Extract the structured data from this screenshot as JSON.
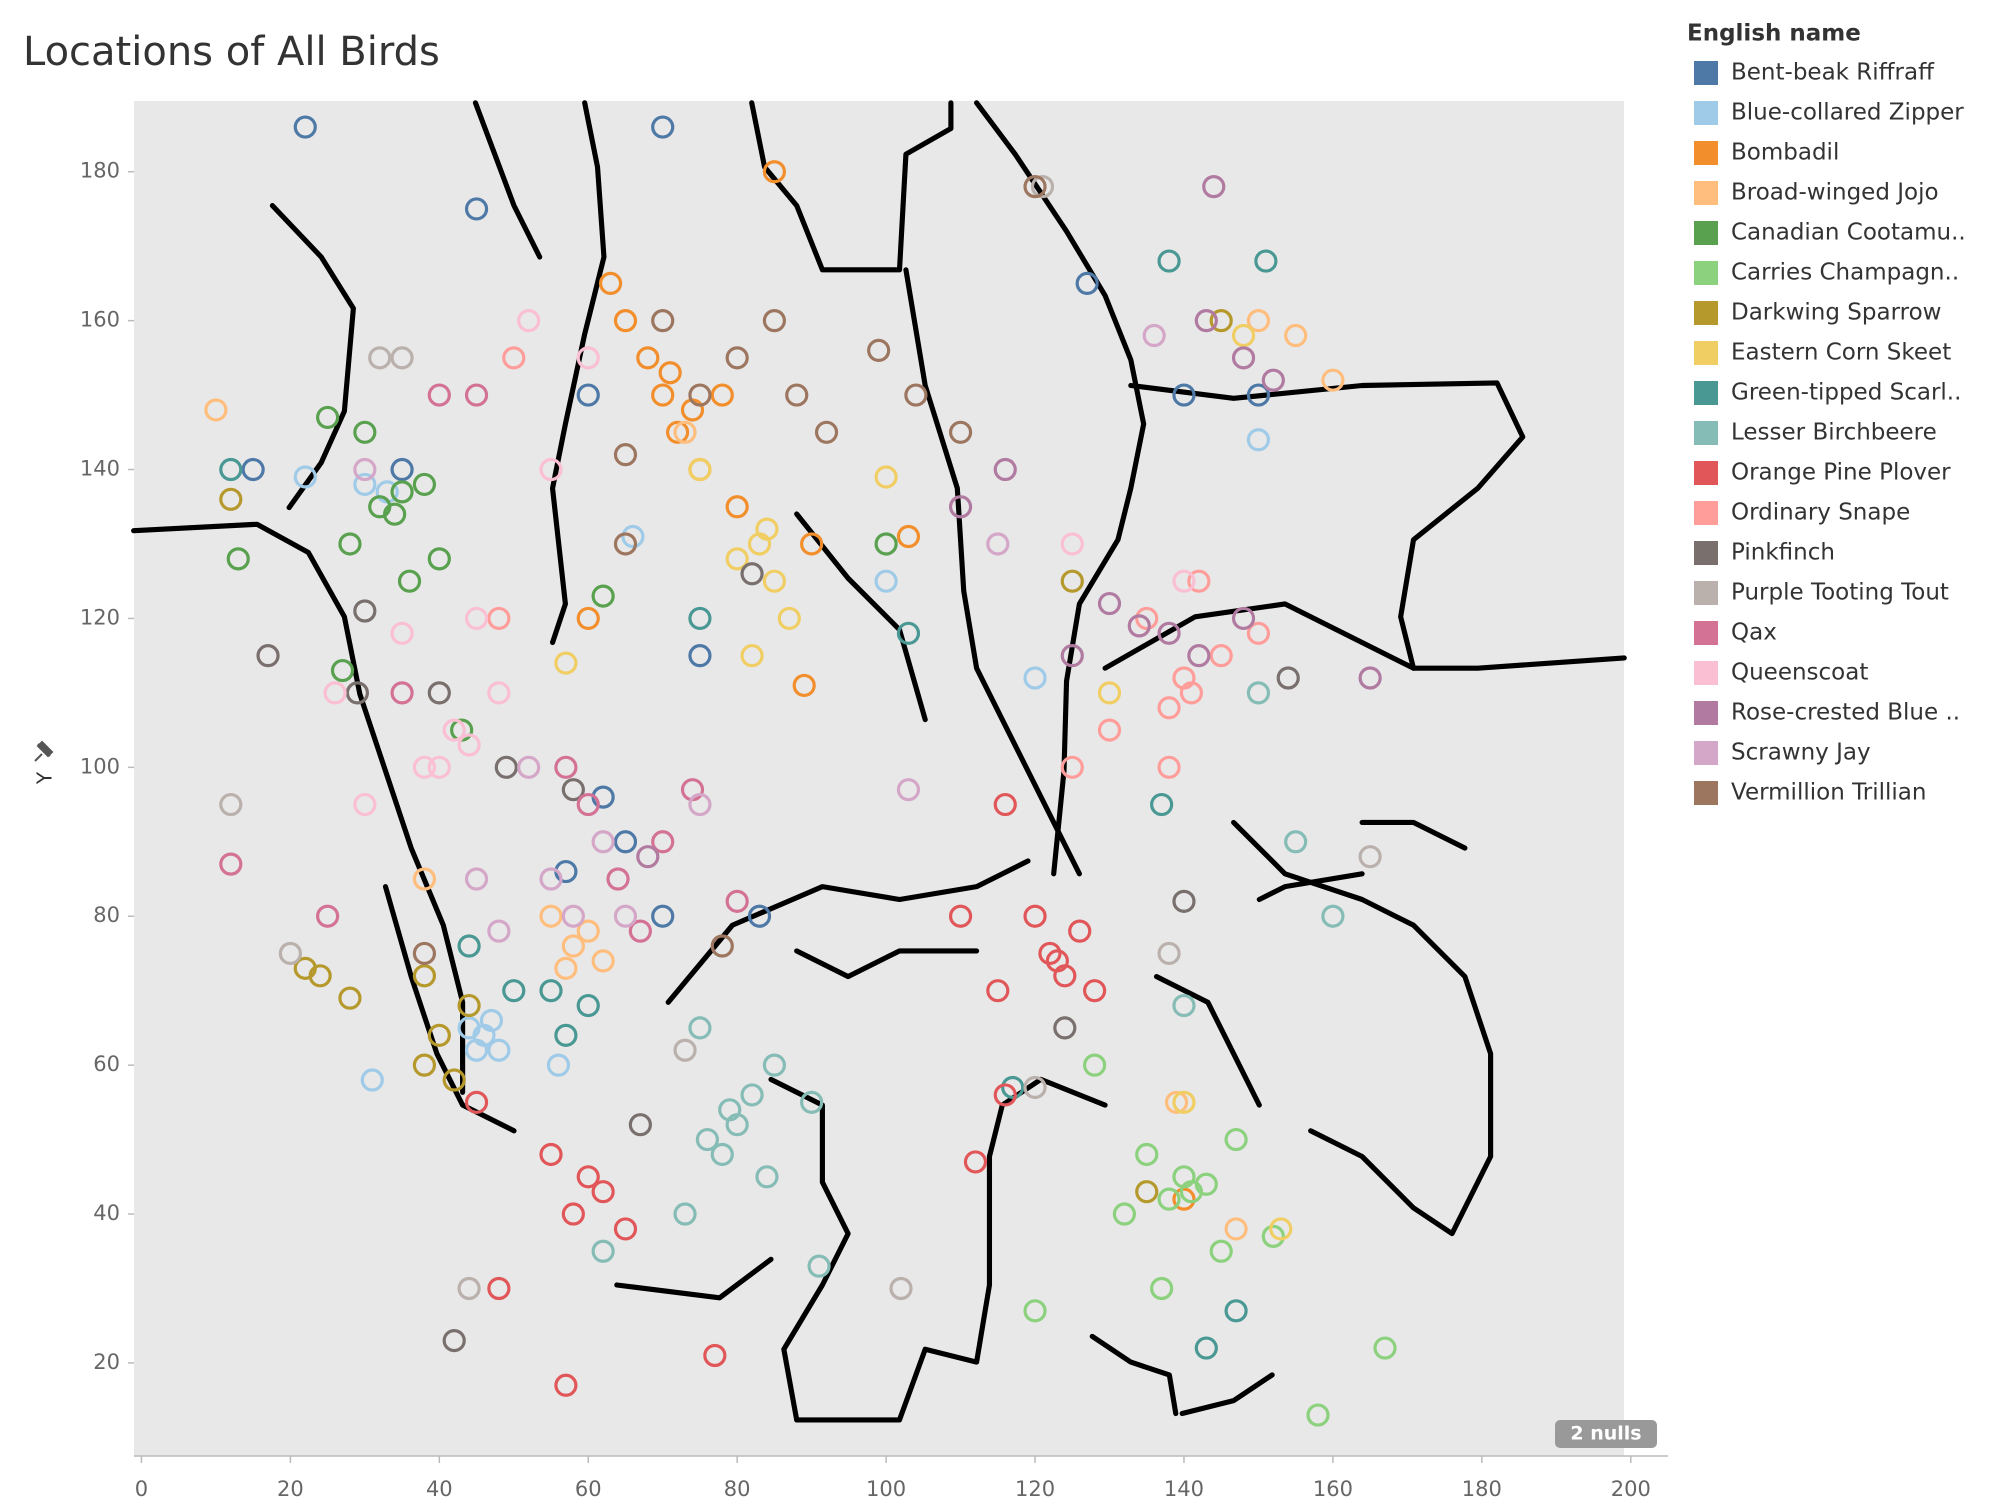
{
  "chart_data": {
    "type": "scatter",
    "title": "Locations of All Birds",
    "y_label": "Y",
    "legend_title": "English name",
    "nulls_indicator": "2 nulls",
    "xlim": [
      -1,
      205
    ],
    "ylim": [
      7.5,
      189.5
    ],
    "xticks": [
      0,
      20,
      40,
      60,
      80,
      100,
      120,
      140,
      160,
      180,
      200
    ],
    "yticks": [
      20,
      40,
      60,
      80,
      100,
      120,
      140,
      160,
      180
    ],
    "series": [
      {
        "name": "Bent-beak Riffraff",
        "color": "#4e79a7",
        "x": [
          65,
          70,
          35,
          60,
          22,
          70,
          15,
          75,
          83,
          45,
          127,
          140,
          150,
          57,
          62
        ],
        "y": [
          90,
          80,
          140,
          150,
          186,
          186,
          140,
          115,
          80,
          175,
          165,
          150,
          150,
          86,
          96
        ]
      },
      {
        "name": "Blue-collared Zipper",
        "color": "#a0cbe8",
        "x": [
          46,
          44,
          48,
          30,
          33,
          56,
          22,
          66,
          100,
          150,
          120,
          31,
          45,
          47
        ],
        "y": [
          64,
          65,
          62,
          138,
          137,
          60,
          139,
          131,
          125,
          144,
          112,
          58,
          62,
          66
        ]
      },
      {
        "name": "Bombadil",
        "color": "#f28e2b",
        "x": [
          70,
          72,
          68,
          75,
          65,
          80,
          90,
          63,
          78,
          89,
          140,
          103,
          60,
          85,
          71,
          74
        ],
        "y": [
          150,
          145,
          155,
          140,
          160,
          135,
          130,
          165,
          150,
          111,
          42,
          131,
          120,
          180,
          153,
          148
        ]
      },
      {
        "name": "Broad-winged Jojo",
        "color": "#ffbe7d",
        "x": [
          58,
          60,
          62,
          55,
          75,
          73,
          10,
          155,
          160,
          38,
          150,
          139,
          147,
          57
        ],
        "y": [
          76,
          78,
          74,
          80,
          140,
          145,
          148,
          158,
          152,
          85,
          160,
          55,
          38,
          73
        ]
      },
      {
        "name": "Canadian Cootamu..",
        "color": "#59a14f",
        "x": [
          35,
          32,
          38,
          30,
          28,
          40,
          25,
          36,
          13,
          62,
          43,
          100,
          27,
          34
        ],
        "y": [
          137,
          135,
          138,
          145,
          130,
          128,
          147,
          125,
          128,
          123,
          105,
          130,
          113,
          134
        ]
      },
      {
        "name": "Carries Champagn..",
        "color": "#8cd17d",
        "x": [
          140,
          138,
          143,
          135,
          147,
          132,
          145,
          137,
          158,
          167,
          152,
          128,
          120,
          141
        ],
        "y": [
          45,
          42,
          44,
          48,
          50,
          40,
          35,
          30,
          13,
          22,
          37,
          60,
          27,
          43
        ]
      },
      {
        "name": "Darkwing Sparrow",
        "color": "#b6992d",
        "x": [
          40,
          38,
          42,
          44,
          22,
          24,
          28,
          12,
          38,
          135,
          145,
          125
        ],
        "y": [
          64,
          60,
          58,
          68,
          73,
          72,
          69,
          136,
          72,
          43,
          160,
          125
        ]
      },
      {
        "name": "Eastern Corn Skeet",
        "color": "#f1ce63",
        "x": [
          83,
          85,
          80,
          87,
          82,
          75,
          148,
          100,
          57,
          130,
          153,
          140,
          84
        ],
        "y": [
          130,
          125,
          128,
          120,
          115,
          140,
          158,
          139,
          114,
          110,
          38,
          55,
          132
        ]
      },
      {
        "name": "Green-tipped Scarl..",
        "color": "#499894",
        "x": [
          57,
          55,
          60,
          50,
          75,
          12,
          137,
          151,
          138,
          117,
          143,
          147,
          103,
          44
        ],
        "y": [
          64,
          70,
          68,
          70,
          120,
          140,
          95,
          168,
          168,
          57,
          22,
          27,
          118,
          76
        ]
      },
      {
        "name": "Lesser Birchbeere",
        "color": "#86bcb6",
        "x": [
          80,
          78,
          82,
          76,
          84,
          85,
          90,
          73,
          75,
          140,
          150,
          155,
          160,
          62,
          91,
          79
        ],
        "y": [
          52,
          48,
          56,
          50,
          45,
          60,
          55,
          40,
          65,
          68,
          110,
          90,
          80,
          35,
          33,
          54
        ]
      },
      {
        "name": "Orange Pine Plover",
        "color": "#e15759",
        "x": [
          122,
          124,
          126,
          120,
          128,
          60,
          58,
          62,
          55,
          65,
          48,
          45,
          110,
          115,
          116,
          112,
          116,
          57,
          77,
          123
        ],
        "y": [
          75,
          72,
          78,
          80,
          70,
          45,
          40,
          43,
          48,
          38,
          30,
          55,
          80,
          70,
          56,
          47,
          95,
          17,
          21,
          74
        ]
      },
      {
        "name": "Ordinary Snape",
        "color": "#ff9d9a",
        "x": [
          140,
          138,
          145,
          135,
          130,
          142,
          150,
          50,
          138,
          48,
          125,
          141
        ],
        "y": [
          112,
          108,
          115,
          120,
          105,
          125,
          118,
          155,
          100,
          120,
          100,
          110
        ]
      },
      {
        "name": "Pinkfinch",
        "color": "#79706e",
        "x": [
          58,
          49,
          30,
          29,
          40,
          17,
          140,
          82,
          67,
          124,
          42,
          154
        ],
        "y": [
          97,
          100,
          121,
          110,
          110,
          115,
          82,
          126,
          52,
          65,
          23,
          112
        ]
      },
      {
        "name": "Purple Tooting Tout",
        "color": "#bab0ac",
        "x": [
          35,
          12,
          20,
          120,
          165,
          121,
          102,
          44,
          73,
          138,
          32
        ],
        "y": [
          155,
          95,
          75,
          57,
          88,
          178,
          30,
          30,
          62,
          75,
          155
        ]
      },
      {
        "name": "Qax",
        "color": "#d37295",
        "x": [
          67,
          64,
          70,
          60,
          57,
          25,
          45,
          35,
          12,
          74,
          80,
          40
        ],
        "y": [
          78,
          85,
          90,
          95,
          100,
          80,
          150,
          110,
          87,
          97,
          82,
          150
        ]
      },
      {
        "name": "Queenscoat",
        "color": "#fabfd2",
        "x": [
          45,
          42,
          48,
          38,
          52,
          55,
          30,
          35,
          60,
          140,
          125,
          26,
          40,
          44
        ],
        "y": [
          120,
          105,
          110,
          100,
          160,
          140,
          95,
          118,
          155,
          125,
          130,
          110,
          100,
          103
        ]
      },
      {
        "name": "Rose-crested Blue ..",
        "color": "#b07aa1",
        "x": [
          138,
          142,
          130,
          148,
          125,
          148,
          143,
          152,
          116,
          144,
          110,
          165,
          68,
          134
        ],
        "y": [
          118,
          115,
          122,
          120,
          115,
          155,
          160,
          152,
          140,
          178,
          135,
          112,
          88,
          119
        ]
      },
      {
        "name": "Scrawny Jay",
        "color": "#d4a6c8",
        "x": [
          62,
          55,
          65,
          75,
          58,
          48,
          103,
          136,
          30,
          52,
          115,
          45
        ],
        "y": [
          90,
          85,
          80,
          95,
          80,
          78,
          97,
          158,
          140,
          100,
          130,
          85
        ]
      },
      {
        "name": "Vermillion Trillian",
        "color": "#9d7660",
        "x": [
          85,
          88,
          92,
          80,
          75,
          65,
          120,
          104,
          110,
          65,
          70,
          38,
          78,
          99
        ],
        "y": [
          160,
          150,
          145,
          155,
          150,
          142,
          178,
          150,
          145,
          130,
          160,
          75,
          76,
          156
        ]
      }
    ]
  }
}
